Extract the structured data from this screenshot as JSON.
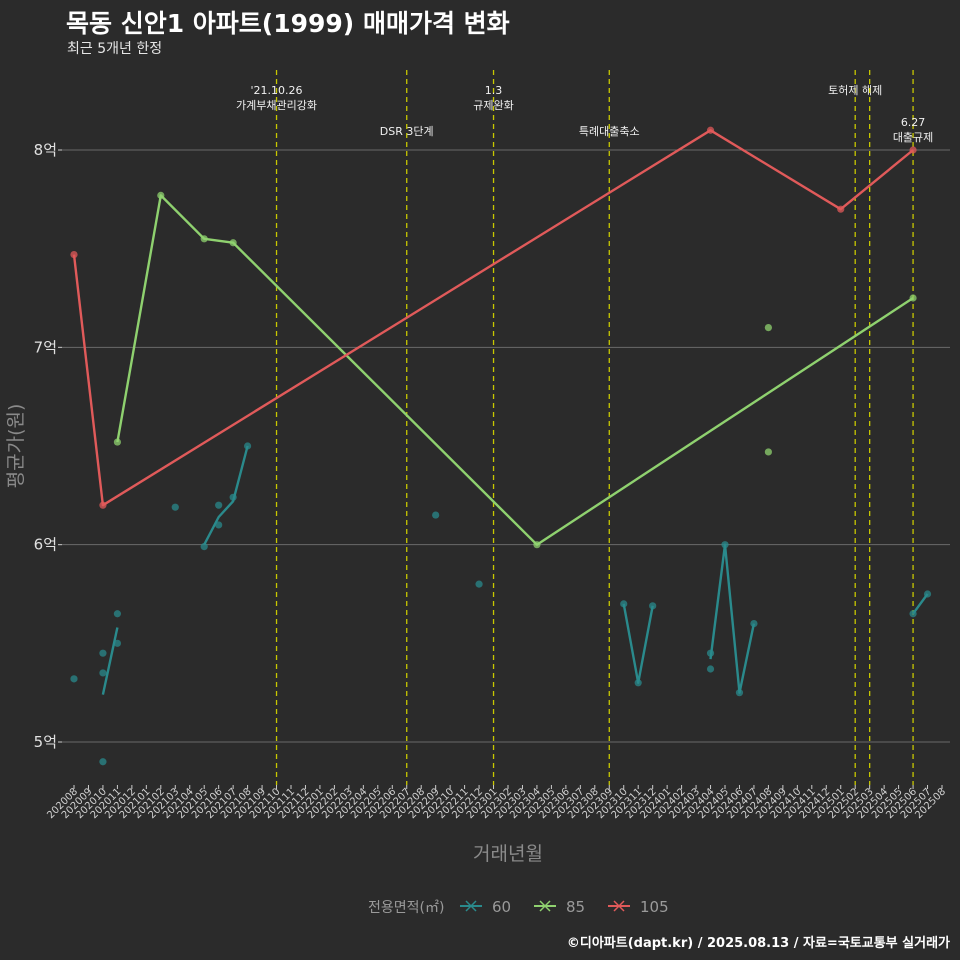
{
  "chart_data": {
    "type": "line",
    "title": "목동 신안1 아파트(1999) 매매가격 변화",
    "subtitle": "최근 5개년 한정",
    "xlabel": "거래년월",
    "ylabel": "평균가(원)",
    "caption": "©디아파트(dapt.kr) / 2025.08.13 / 자료=국토교통부 실거래가",
    "legend_title": "전용면적(㎡)",
    "legend_position": "bottom",
    "grid": true,
    "y_unit": "억",
    "ylim": [
      4.75,
      8.3
    ],
    "yticks": [
      5,
      6,
      7,
      8
    ],
    "ytick_labels": [
      "5억",
      "6억",
      "7억",
      "8억"
    ],
    "categories": [
      "202008",
      "202009",
      "202010",
      "202011",
      "202012",
      "202101",
      "202102",
      "202103",
      "202104",
      "202105",
      "202106",
      "202107",
      "202108",
      "202109",
      "202110",
      "202111",
      "202112",
      "202201",
      "202202",
      "202203",
      "202204",
      "202205",
      "202206",
      "202207",
      "202208",
      "202209",
      "202210",
      "202211",
      "202212",
      "202301",
      "202302",
      "202303",
      "202304",
      "202305",
      "202306",
      "202307",
      "202308",
      "202309",
      "202310",
      "202311",
      "202312",
      "202401",
      "202402",
      "202403",
      "202404",
      "202405",
      "202406",
      "202407",
      "202408",
      "202409",
      "202410",
      "202411",
      "202412",
      "202501",
      "202502",
      "202503",
      "202504",
      "202505",
      "202506",
      "202507",
      "202508"
    ],
    "series": [
      {
        "name": "60",
        "color": "#2a8a8c",
        "line_segments": [
          [
            [
              "202010",
              5.24
            ],
            [
              "202011",
              5.58
            ]
          ],
          [
            [
              "202105",
              6.0
            ],
            [
              "202106",
              6.14
            ],
            [
              "202107",
              6.22
            ],
            [
              "202108",
              6.5
            ]
          ],
          [
            [
              "202310",
              5.7
            ],
            [
              "202311",
              5.3
            ],
            [
              "202312",
              5.69
            ]
          ],
          [
            [
              "202404",
              5.42
            ],
            [
              "202405",
              6.0
            ],
            [
              "202406",
              5.25
            ],
            [
              "202407",
              5.6
            ]
          ],
          [
            [
              "202506",
              5.65
            ],
            [
              "202507",
              5.75
            ]
          ]
        ],
        "points": [
          [
            "202008",
            5.32
          ],
          [
            "202010",
            5.45
          ],
          [
            "202010",
            5.35
          ],
          [
            "202010",
            4.9
          ],
          [
            "202011",
            5.65
          ],
          [
            "202011",
            5.5
          ],
          [
            "202103",
            6.19
          ],
          [
            "202105",
            5.99
          ],
          [
            "202106",
            6.2
          ],
          [
            "202106",
            6.1
          ],
          [
            "202107",
            6.24
          ],
          [
            "202108",
            6.5
          ],
          [
            "202209",
            6.15
          ],
          [
            "202212",
            5.8
          ],
          [
            "202310",
            5.7
          ],
          [
            "202311",
            5.3
          ],
          [
            "202312",
            5.69
          ],
          [
            "202404",
            5.45
          ],
          [
            "202404",
            5.37
          ],
          [
            "202405",
            6.0
          ],
          [
            "202406",
            5.25
          ],
          [
            "202407",
            5.6
          ],
          [
            "202506",
            5.65
          ],
          [
            "202507",
            5.75
          ]
        ]
      },
      {
        "name": "85",
        "color": "#8fd16f",
        "line_segments": [
          [
            [
              "202011",
              6.52
            ],
            [
              "202102",
              7.77
            ],
            [
              "202105",
              7.55
            ],
            [
              "202107",
              7.53
            ],
            [
              "202304",
              6.0
            ],
            [
              "202506",
              7.25
            ]
          ]
        ],
        "points": [
          [
            "202011",
            6.52
          ],
          [
            "202102",
            7.77
          ],
          [
            "202105",
            7.55
          ],
          [
            "202107",
            7.53
          ],
          [
            "202304",
            6.0
          ],
          [
            "202408",
            7.1
          ],
          [
            "202408",
            6.47
          ],
          [
            "202506",
            7.25
          ]
        ]
      },
      {
        "name": "105",
        "color": "#e05a5a",
        "line_segments": [
          [
            [
              "202008",
              7.47
            ],
            [
              "202010",
              6.2
            ],
            [
              "202404",
              8.1
            ],
            [
              "202501",
              7.7
            ],
            [
              "202506",
              8.0
            ]
          ]
        ],
        "points": [
          [
            "202008",
            7.47
          ],
          [
            "202010",
            6.2
          ],
          [
            "202404",
            8.1
          ],
          [
            "202501",
            7.7
          ],
          [
            "202506",
            8.0
          ]
        ]
      }
    ],
    "events": [
      {
        "x": "202110",
        "lines": [
          "'21.10.26",
          "가계부채관리강화"
        ],
        "row": 1
      },
      {
        "x": "202207",
        "lines": [
          "DSR 3단계"
        ],
        "row": 2
      },
      {
        "x": "202301",
        "lines": [
          "1.3",
          "규제완화"
        ],
        "row": 1
      },
      {
        "x": "202309",
        "lines": [
          "특례대출축소"
        ],
        "row": 2
      },
      {
        "x": "202502",
        "lines": [
          "토허제 해제"
        ],
        "row": 1
      },
      {
        "x": "202503",
        "lines": [],
        "row": 1
      },
      {
        "x": "202506",
        "lines": [
          "6.27",
          "대출규제"
        ],
        "row": 3
      }
    ],
    "event_line_color": "#c8c800",
    "gridline_color": "#6a6a6a"
  }
}
